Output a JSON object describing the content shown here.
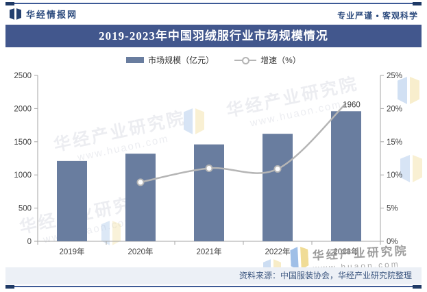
{
  "header": {
    "brand": "华经情报网",
    "slogan": "专业严谨 • 客观科学"
  },
  "title": "2019-2023年中国羽绒服行业市场规模情况",
  "legend": {
    "bar_label": "市场规模（亿元）",
    "line_label": "增速（%）"
  },
  "chart_data": {
    "type": "combo",
    "categories": [
      "2019年",
      "2020年",
      "2021年",
      "2022年",
      "2023年"
    ],
    "series": [
      {
        "name": "市场规模（亿元）",
        "type": "bar",
        "axis": "left",
        "color": "#697d9f",
        "values": [
          1210,
          1320,
          1460,
          1620,
          1960
        ]
      },
      {
        "name": "增速（%）",
        "type": "line",
        "axis": "right",
        "color": "#b5b5b5",
        "values": [
          null,
          8.9,
          11.0,
          10.9,
          20.8
        ]
      }
    ],
    "left_axis": {
      "min": 0,
      "max": 2500,
      "ticks": [
        0,
        500,
        1000,
        1500,
        2000,
        2500
      ]
    },
    "right_axis": {
      "min": 0,
      "max": 25,
      "ticks": [
        0,
        5,
        10,
        15,
        20,
        25
      ],
      "tick_suffix": "%"
    },
    "data_labels": [
      {
        "category": "2023年",
        "series": "市场规模（亿元）",
        "text": "1960"
      }
    ],
    "grid": false,
    "legend_position": "top"
  },
  "watermark": {
    "line1": "华经产业研究院",
    "line2": "www.huaon.com"
  },
  "source": "资料来源：中国服装协会，华经产业研究院整理"
}
